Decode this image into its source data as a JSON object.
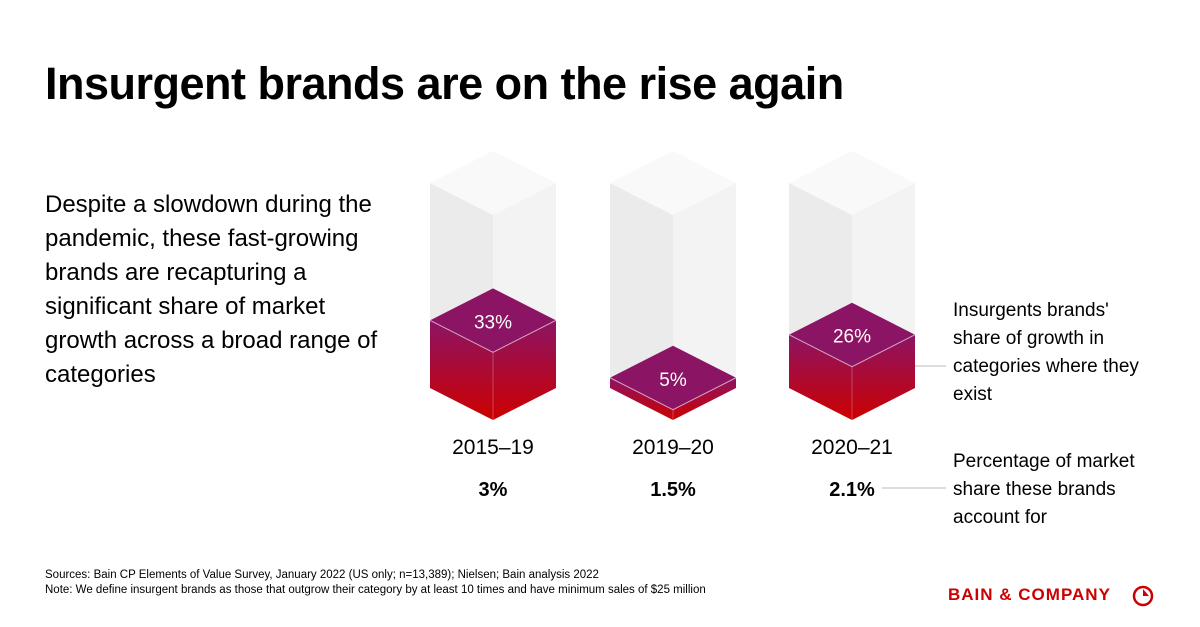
{
  "title": "Insurgent brands are on the rise again",
  "description": "Despite a slowdown during the pandemic, these fast-growing brands are recapturing a significant share of market growth across a broad range of categories",
  "chart_data": {
    "type": "bar",
    "categories": [
      "2015–19",
      "2019–20",
      "2020–21"
    ],
    "series": [
      {
        "name": "Insurgents brands' share of growth in categories where they exist",
        "color": "#8c1464",
        "values": [
          33,
          5,
          26
        ],
        "value_labels": [
          "33%",
          "5%",
          "26%"
        ]
      }
    ],
    "ylim": [
      0,
      100
    ]
  },
  "market_share": {
    "label": "Percentage of market share these brands account for",
    "values": [
      3,
      1.5,
      2.1
    ],
    "value_labels": [
      "3%",
      "1.5%",
      "2.1%"
    ]
  },
  "sources": "Sources: Bain CP Elements of Value Survey, January 2022 (US only; n=13,389); Nielsen; Bain analysis 2022",
  "note": "Note: We define insurgent brands as those that outgrow their category by at least 10 times and have minimum sales of $25 million",
  "brand": "BAIN & COMPANY"
}
